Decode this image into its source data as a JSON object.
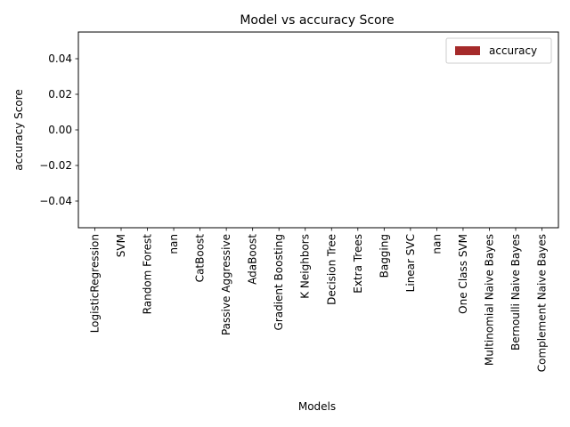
{
  "chart_data": {
    "type": "bar",
    "title": "Model vs accuracy Score",
    "xlabel": "Models",
    "ylabel": "accuracy Score",
    "categories": [
      "LogisticRegression",
      "SVM",
      "Random Forest",
      "nan",
      "CatBoost",
      "Passive Aggressive",
      "AdaBoost",
      "Gradient Boosting",
      "K Neighbors",
      "Decision Tree",
      "Extra Trees",
      "Bagging",
      "Linear SVC",
      "nan",
      "One Class SVM",
      "Multinomial Naive Bayes",
      "Bernoulli Naive Bayes",
      "Complement Naive Bayes"
    ],
    "series": [
      {
        "name": "accuracy",
        "values": [
          0,
          0,
          0,
          0,
          0,
          0,
          0,
          0,
          0,
          0,
          0,
          0,
          0,
          0,
          0,
          0,
          0,
          0
        ],
        "color": "#a52a2a"
      }
    ],
    "ylim": [
      -0.055,
      0.055
    ],
    "yticks": [
      -0.04,
      -0.02,
      0.0,
      0.02,
      0.04
    ],
    "ytick_labels": [
      "−0.04",
      "−0.02",
      "0.00",
      "0.02",
      "0.04"
    ],
    "grid": false,
    "legend": "top-right"
  }
}
